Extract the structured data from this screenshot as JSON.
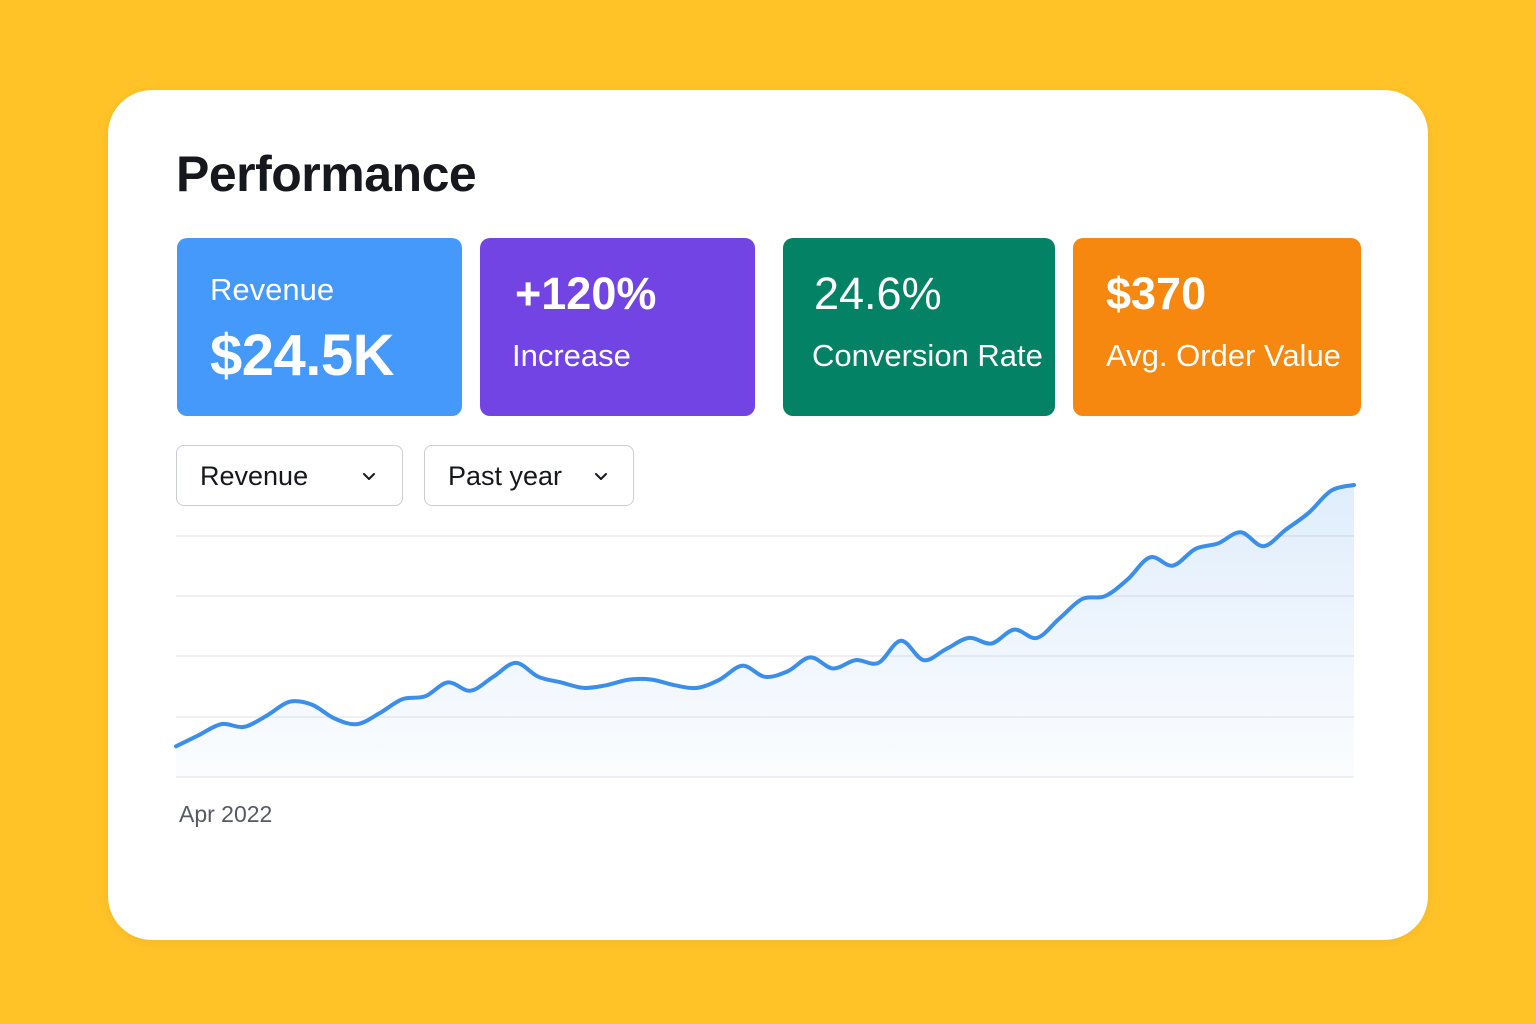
{
  "page": {
    "title": "Performance"
  },
  "kpis": {
    "revenue": {
      "label": "Revenue",
      "value": "$24.5K"
    },
    "increase": {
      "value": "+120%",
      "label": "Increase"
    },
    "conversion": {
      "value": "24.6%",
      "label": "Conversion Rate"
    },
    "aov": {
      "value": "$370",
      "label": "Avg. Order Value"
    }
  },
  "controls": {
    "metric_select": {
      "selected": "Revenue",
      "icon": "chevron-down-icon"
    },
    "range_select": {
      "selected": "Past year",
      "icon": "chevron-down-icon"
    }
  },
  "colors": {
    "background": "#FFC328",
    "revenue_card": "#4499FB",
    "increase_card": "#7244E4",
    "conversion_card": "#038265",
    "aov_card": "#F6870F",
    "line": "#3B8EEA"
  },
  "chart_data": {
    "type": "area",
    "start_label": "Apr 2022",
    "grid": true,
    "ylim": [
      0,
      100
    ],
    "values": [
      6,
      10,
      14,
      13,
      17,
      22,
      21,
      16,
      14,
      18,
      23,
      24,
      29,
      26,
      31,
      36,
      31,
      29,
      27,
      28,
      30,
      30,
      28,
      27,
      30,
      35,
      31,
      33,
      38,
      34,
      37,
      36,
      44,
      37,
      41,
      45,
      43,
      48,
      45,
      52,
      59,
      60,
      66,
      74,
      71,
      77,
      79,
      83,
      78,
      84,
      90,
      98,
      100
    ]
  }
}
